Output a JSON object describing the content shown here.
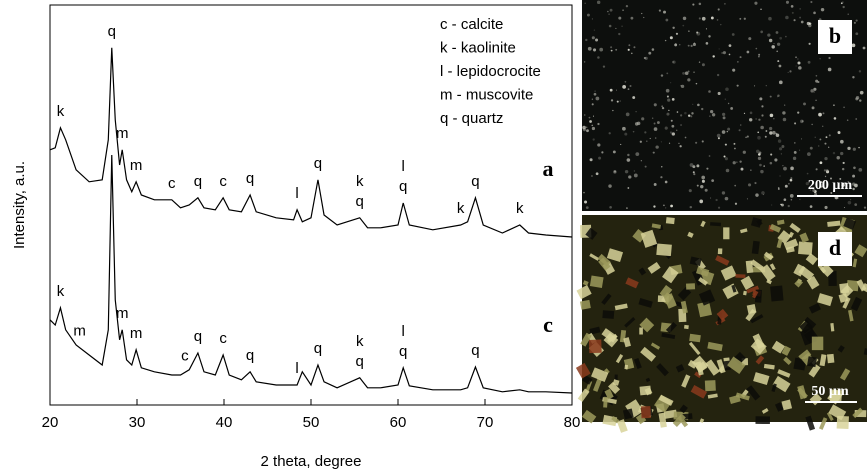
{
  "chart_data": {
    "type": "line",
    "x_label": "2 theta, degree",
    "y_label": "Intensity, a.u.",
    "xlim": [
      20,
      80
    ],
    "xticks": [
      20,
      30,
      40,
      50,
      60,
      70,
      80
    ],
    "ylim": [
      0,
      100
    ],
    "color": "#000000",
    "legend": [
      "c - calcite",
      "k - kaolinite",
      "l - lepidocrocite",
      "m - muscovite",
      "q - quartz"
    ],
    "x": [
      20,
      20.6,
      21.2,
      21.8,
      23,
      24.5,
      26,
      26.7,
      27.1,
      27.5,
      28,
      28.3,
      28.8,
      29.4,
      29.9,
      30.5,
      32,
      34,
      35,
      36,
      37,
      37.7,
      39,
      39.9,
      40.6,
      42,
      43,
      43.7,
      46,
      48,
      48.4,
      49,
      50,
      50.8,
      51.5,
      53,
      55.6,
      56.5,
      58,
      60,
      60.6,
      61.3,
      64,
      67.2,
      68,
      68.9,
      69.8,
      72,
      74,
      75,
      77,
      80
    ],
    "series": [
      {
        "name": "a",
        "values": [
          63.8,
          64.3,
          69.3,
          66.3,
          58.8,
          55.8,
          56.3,
          66.3,
          89.3,
          71.3,
          60,
          63.8,
          56.3,
          53.3,
          55.8,
          52.5,
          51.3,
          51.3,
          49.3,
          50,
          51.8,
          49.3,
          48.8,
          51.8,
          48.8,
          48.3,
          52.5,
          48.3,
          46.8,
          46.3,
          48.8,
          45.8,
          46.8,
          56.3,
          47.5,
          45,
          46.8,
          44.3,
          44.3,
          45,
          50.5,
          45,
          43.8,
          45,
          45.8,
          51.8,
          45,
          43,
          45,
          43,
          42.5,
          42
        ],
        "peak_labels": [
          {
            "x": 21.2,
            "label": "k"
          },
          {
            "x": 27.1,
            "label": "q"
          },
          {
            "x": 28.3,
            "label": "m"
          },
          {
            "x": 29.9,
            "label": "m"
          },
          {
            "x": 34,
            "label": "c"
          },
          {
            "x": 37,
            "label": "q"
          },
          {
            "x": 39.9,
            "label": "c"
          },
          {
            "x": 43,
            "label": "q"
          },
          {
            "x": 48.4,
            "label": "l"
          },
          {
            "x": 50.8,
            "label": "q"
          },
          {
            "x": 55.6,
            "label": "q"
          },
          {
            "x": 55.6,
            "label": "k"
          },
          {
            "x": 60.6,
            "label": "q"
          },
          {
            "x": 60.6,
            "label": "l"
          },
          {
            "x": 67.2,
            "label": "k"
          },
          {
            "x": 68.9,
            "label": "q"
          },
          {
            "x": 74,
            "label": "k"
          }
        ]
      },
      {
        "name": "c",
        "values": [
          21.3,
          20,
          24.3,
          18.8,
          15,
          12.5,
          10,
          18.8,
          62.5,
          26.3,
          16.3,
          18.8,
          11.3,
          10,
          13.8,
          9.3,
          8.3,
          7.5,
          7.5,
          8.8,
          13,
          8.3,
          7.5,
          12.5,
          7.5,
          6.3,
          8.3,
          5.8,
          5,
          5,
          5,
          8.3,
          5,
          10,
          5.8,
          4.3,
          6.8,
          4.3,
          4.3,
          5,
          9.3,
          4.8,
          3.8,
          3.8,
          4.3,
          9.5,
          4.3,
          3.3,
          3.8,
          3.3,
          3.3,
          3
        ],
        "peak_labels": [
          {
            "x": 21.2,
            "label": "k"
          },
          {
            "x": 23.4,
            "label": "m"
          },
          {
            "x": 28.3,
            "label": "m"
          },
          {
            "x": 29.9,
            "label": "m"
          },
          {
            "x": 35.5,
            "label": "c"
          },
          {
            "x": 37,
            "label": "q"
          },
          {
            "x": 39.9,
            "label": "c"
          },
          {
            "x": 43,
            "label": "q"
          },
          {
            "x": 48.4,
            "label": "l"
          },
          {
            "x": 50.8,
            "label": "q"
          },
          {
            "x": 55.6,
            "label": "q"
          },
          {
            "x": 55.6,
            "label": "k"
          },
          {
            "x": 60.6,
            "label": "q"
          },
          {
            "x": 60.6,
            "label": "l"
          },
          {
            "x": 68.9,
            "label": "q"
          }
        ]
      }
    ]
  },
  "micrographs": [
    {
      "label": "b",
      "scale_bar": "200 µm"
    },
    {
      "label": "d",
      "scale_bar": "50 µm"
    }
  ]
}
